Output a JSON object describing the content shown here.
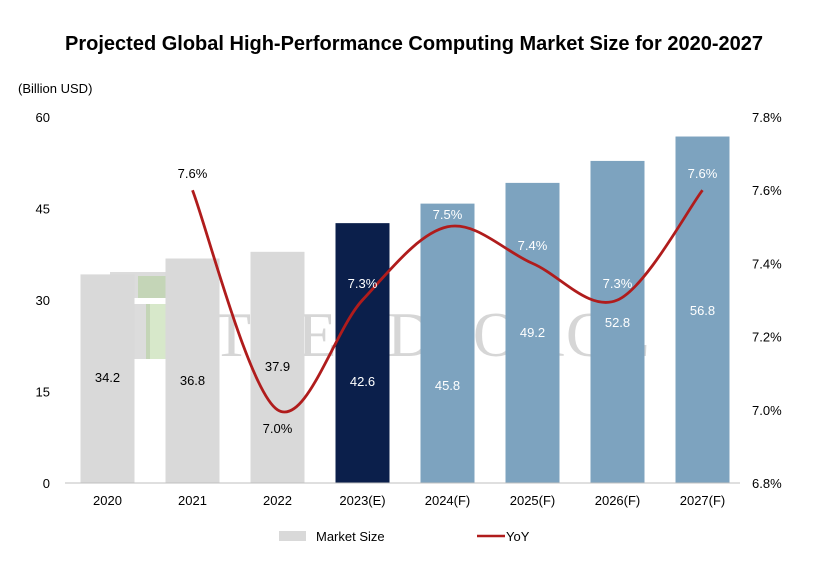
{
  "chart_data": {
    "type": "bar+line",
    "title": "Projected Global High-Performance Computing Market Size for 2020-2027",
    "y_unit_label": "(Billion USD)",
    "categories": [
      "2020",
      "2021",
      "2022",
      "2023(E)",
      "2024(F)",
      "2025(F)",
      "2026(F)",
      "2027(F)"
    ],
    "bar_series": {
      "name": "Market Size",
      "values": [
        34.2,
        36.8,
        37.9,
        42.6,
        45.8,
        49.2,
        52.8,
        56.8
      ],
      "labels": [
        "34.2",
        "36.8",
        "37.9",
        "42.6",
        "45.8",
        "49.2",
        "52.8",
        "56.8"
      ],
      "colors": [
        "#d9d9d9",
        "#d9d9d9",
        "#d9d9d9",
        "#0b1f4b",
        "#7da3bf",
        "#7da3bf",
        "#7da3bf",
        "#7da3bf"
      ]
    },
    "line_series": {
      "name": "YoY",
      "categories": [
        "2021",
        "2022",
        "2023(E)",
        "2024(F)",
        "2025(F)",
        "2026(F)",
        "2027(F)"
      ],
      "values": [
        7.6,
        7.0,
        7.3,
        7.5,
        7.4,
        7.3,
        7.6
      ],
      "labels": [
        "7.6%",
        "7.0%",
        "7.3%",
        "7.5%",
        "7.4%",
        "7.3%",
        "7.6%"
      ],
      "color": "#b01c1c"
    },
    "y_left": {
      "min": 0,
      "max": 60,
      "ticks": [
        "0",
        "15",
        "30",
        "45",
        "60"
      ]
    },
    "y_right": {
      "min": 6.8,
      "max": 7.8,
      "ticks": [
        "6.8%",
        "7.0%",
        "7.2%",
        "7.4%",
        "7.6%",
        "7.8%"
      ]
    },
    "grid": false,
    "legend_position": "bottom",
    "watermark": "TRENDFORCE"
  }
}
